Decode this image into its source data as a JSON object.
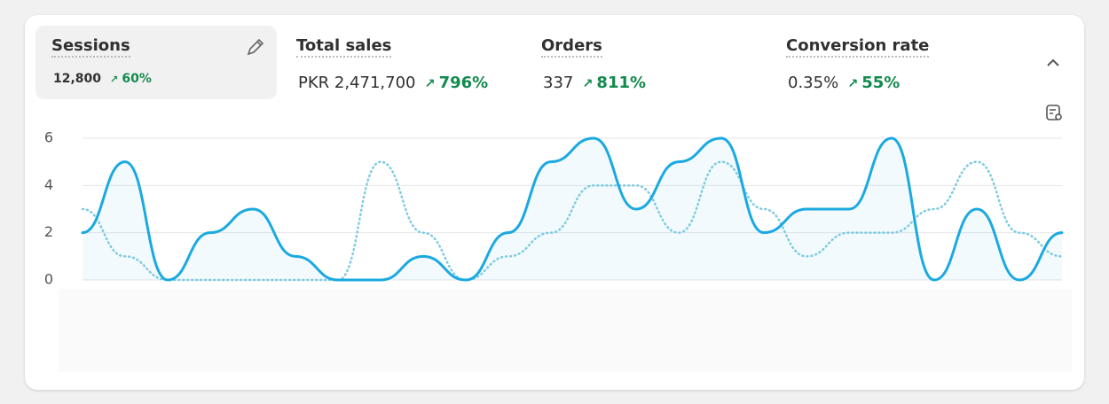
{
  "metrics": [
    {
      "label": "Sessions",
      "value": "12,800",
      "change": "60%"
    },
    {
      "label": "Total sales",
      "value": "PKR 2,471,700",
      "change": "796%"
    },
    {
      "label": "Orders",
      "value": "337",
      "change": "811%"
    },
    {
      "label": "Conversion rate",
      "value": "0.35%",
      "change": "55%"
    }
  ],
  "chart_data": {
    "type": "line",
    "categories": [
      null,
      null,
      null,
      null,
      null,
      null,
      null,
      null,
      null,
      null,
      null,
      null,
      null,
      null,
      null,
      null,
      null,
      null,
      null,
      null,
      null,
      null,
      null,
      null
    ],
    "series": [
      {
        "color": "#1ba9e1",
        "values": [
          2,
          5,
          0,
          2,
          3,
          1,
          0,
          0,
          1,
          0,
          2,
          5,
          6,
          3,
          5,
          6,
          2,
          3,
          3,
          6,
          0,
          3,
          0,
          2
        ]
      },
      {
        "color": "#7fcbe0",
        "values": [
          3,
          1,
          0,
          0,
          0,
          0,
          0,
          5,
          2,
          0,
          1,
          2,
          4,
          4,
          2,
          5,
          3,
          1,
          2,
          2,
          3,
          5,
          2,
          1
        ]
      }
    ],
    "ylim": [
      0,
      6
    ],
    "yticks": [
      0,
      2,
      4,
      6
    ],
    "grid": true
  }
}
